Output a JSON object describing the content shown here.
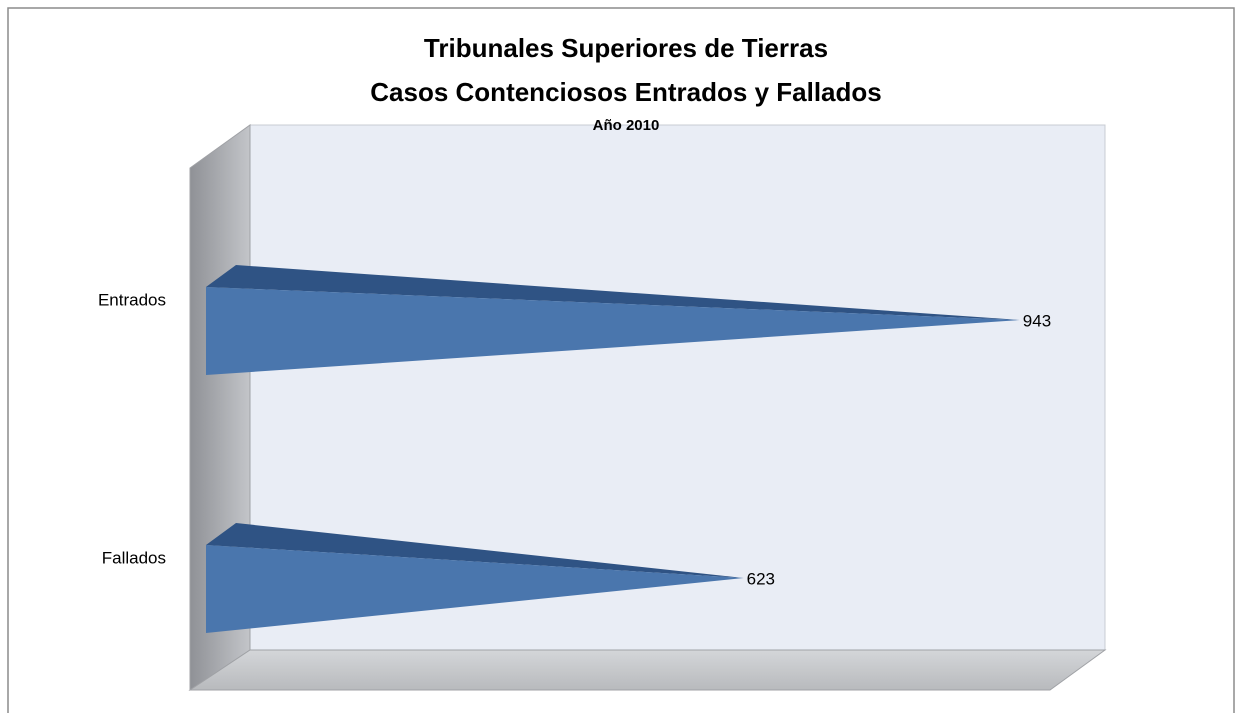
{
  "chart_data": {
    "type": "bar3d-pyramid-horizontal",
    "title": [
      "Tribunales Superiores de Tierras",
      "Casos Contenciosos Entrados y Fallados"
    ],
    "subtitle": "Año 2010",
    "categories": [
      "Entrados",
      "Fallados"
    ],
    "values": [
      943,
      623
    ],
    "color": "#4a76ad",
    "xlim": [
      0,
      1000
    ]
  }
}
